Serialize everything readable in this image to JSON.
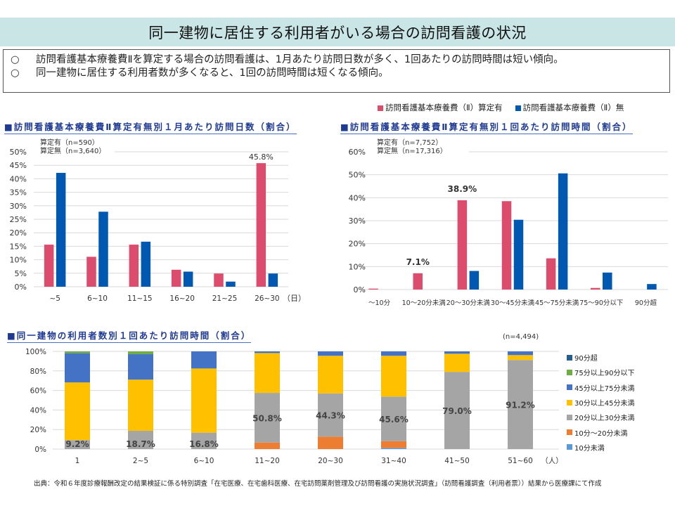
{
  "page": {
    "title": "同一建物に居住する利用者がいる場合の訪問看護の状況",
    "summary": [
      {
        "mark": "○",
        "text": "訪問看護基本療養費Ⅱを算定する場合の訪問看護は、1月あたり訪問日数が多く、1回あたりの訪問時間は短い傾向。"
      },
      {
        "mark": "○",
        "text": "同一建物に居住する利用者数が多くなると、1回の訪問時間は短くなる傾向。"
      }
    ],
    "top_legend": [
      {
        "label": "訪問看護基本療養費（Ⅱ）算定有",
        "color": "#dc4c6c"
      },
      {
        "label": "訪問看護基本療養費（Ⅱ）無",
        "color": "#0058b0"
      }
    ],
    "source": "出典：令和６年度診療報酬改定の結果検証に係る特別調査「在宅医療、在宅歯科医療、在宅訪問薬剤管理及び訪問看護の実施状況調査」（訪問看護調査（利用者票））結果から医療課にて作成"
  },
  "chart_data": [
    {
      "type": "bar",
      "title": "■訪問看護基本療養費Ⅱ算定有無別１月あたり訪問日数（割合）",
      "n_labels": [
        "算定有（n=590）",
        "算定無（n=3,640）"
      ],
      "xlabel": "（日）",
      "ylabel": "",
      "ylim": [
        0,
        50
      ],
      "yticks": [
        0,
        5,
        10,
        15,
        20,
        25,
        30,
        35,
        40,
        45,
        50
      ],
      "ytick_suffix": "%",
      "grid": true,
      "categories": [
        "~5",
        "6~10",
        "11~15",
        "16~20",
        "21~25",
        "26~30"
      ],
      "series": [
        {
          "name": "訪問看護基本療養費（Ⅱ）算定有",
          "color": "#dc4c6c",
          "values": [
            15.6,
            11.1,
            15.6,
            6.3,
            4.9,
            45.8
          ]
        },
        {
          "name": "訪問看護基本療養費（Ⅱ）無",
          "color": "#0058b0",
          "values": [
            42.2,
            27.8,
            16.7,
            5.6,
            1.9,
            4.9
          ]
        }
      ],
      "annotations": [
        {
          "series": 0,
          "index": 5,
          "text": "45.8%"
        }
      ]
    },
    {
      "type": "bar",
      "title": "■訪問看護基本療養費Ⅱ算定有無別１回あたり訪問時間（割合）",
      "n_labels": [
        "算定有（n=7,752）",
        "算定無（n=17,316）"
      ],
      "xlabel": "",
      "ylabel": "",
      "ylim": [
        0,
        60
      ],
      "yticks": [
        0,
        10,
        20,
        30,
        40,
        50,
        60
      ],
      "ytick_suffix": "%",
      "grid": true,
      "legend": "top",
      "categories": [
        "～10分",
        "10～20分未満",
        "20～30分未満",
        "30～45分未満",
        "45～75分未満",
        "75～90分以下",
        "90分超"
      ],
      "series": [
        {
          "name": "訪問看護基本療養費（Ⅱ）算定有",
          "color": "#dc4c6c",
          "values": [
            0.4,
            7.1,
            38.9,
            38.5,
            13.6,
            0.7,
            0.0
          ]
        },
        {
          "name": "訪問看護基本療養費（Ⅱ）無",
          "color": "#0058b0",
          "values": [
            0.0,
            0.0,
            8.1,
            30.4,
            50.6,
            7.4,
            2.4
          ]
        }
      ],
      "annotations": [
        {
          "series": 0,
          "index": 1,
          "text": "7.1%"
        },
        {
          "series": 0,
          "index": 2,
          "text": "38.9%"
        }
      ]
    },
    {
      "type": "bar",
      "stacked": true,
      "title": "■同一建物の利用者数別１回あたり訪問時間（割合）",
      "n_label": "(n=4,494)",
      "xlabel": "（人）",
      "ylabel": "",
      "ylim": [
        0,
        100
      ],
      "yticks": [
        0,
        20,
        40,
        60,
        80,
        100
      ],
      "ytick_suffix": "%",
      "grid": true,
      "legend": "right",
      "categories": [
        "1",
        "2~5",
        "6~10",
        "11~20",
        "20~30",
        "31~40",
        "41~50",
        "51~60"
      ],
      "series": [
        {
          "name": "10分未満",
          "color": "#5b9bd5",
          "values": [
            0,
            0,
            0,
            0,
            0,
            1.2,
            0,
            0
          ]
        },
        {
          "name": "10分～20分未満",
          "color": "#ed7d31",
          "values": [
            0,
            0,
            0,
            6.7,
            12.7,
            6.9,
            0,
            0
          ]
        },
        {
          "name": "20分以上30分未満",
          "color": "#a5a5a5",
          "values": [
            9.2,
            18.7,
            16.8,
            50.8,
            44.3,
            45.6,
            79.0,
            91.2
          ]
        },
        {
          "name": "30分以上45分未満",
          "color": "#ffc000",
          "values": [
            59.0,
            52.4,
            65.7,
            40.8,
            38.5,
            41.8,
            18.6,
            5.0
          ]
        },
        {
          "name": "45分以上75分未満",
          "color": "#4472c4",
          "values": [
            29.9,
            26.0,
            17.5,
            1.7,
            4.5,
            4.5,
            2.4,
            3.8
          ]
        },
        {
          "name": "75分以上90分以下",
          "color": "#70ad47",
          "values": [
            1.9,
            2.9,
            0,
            0,
            0,
            0,
            0,
            0
          ]
        },
        {
          "name": "90分超",
          "color": "#255e91",
          "values": [
            0,
            0,
            0,
            0,
            0,
            0,
            0,
            0
          ]
        }
      ],
      "legend_order": [
        "90分超",
        "75分以上90分以下",
        "45分以上75分未満",
        "30分以上45分未満",
        "20分以上30分未満",
        "10分～20分未満",
        "10分未満"
      ],
      "annotations_series": "20分以上30分未満",
      "annotations": [
        "9.2%",
        "18.7%",
        "16.8%",
        "50.8%",
        "44.3%",
        "45.6%",
        "79.0%",
        "91.2%"
      ]
    }
  ]
}
